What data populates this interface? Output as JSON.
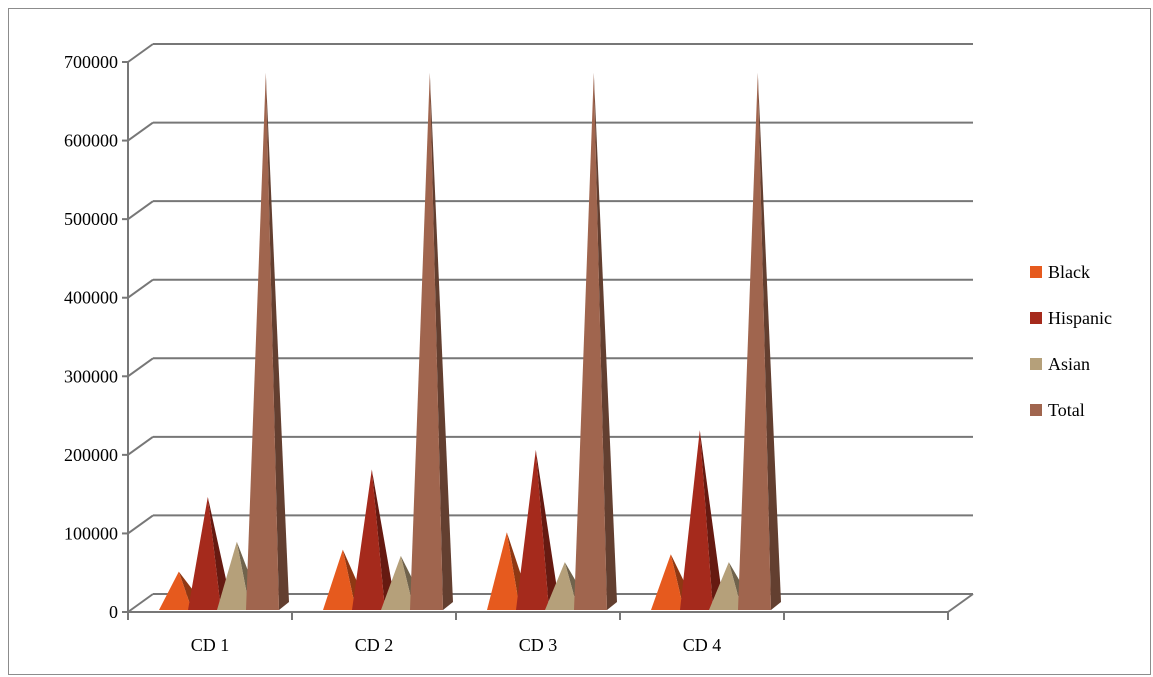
{
  "chart_data": {
    "type": "bar",
    "style": "3d-pyramid",
    "categories": [
      "CD 1",
      "CD 2",
      "CD 3",
      "CD 4"
    ],
    "series": [
      {
        "name": "Black",
        "values": [
          40000,
          68000,
          90000,
          62000
        ],
        "color": "#e65a1e"
      },
      {
        "name": "Hispanic",
        "values": [
          135000,
          170000,
          195000,
          220000
        ],
        "color": "#a52a1c"
      },
      {
        "name": "Asian",
        "values": [
          78000,
          60000,
          52000,
          52000
        ],
        "color": "#b5a07a"
      },
      {
        "name": "Total",
        "values": [
          675000,
          675000,
          675000,
          675000
        ],
        "color": "#a0654e"
      }
    ],
    "ylim": [
      0,
      700000
    ],
    "yticks": [
      "0",
      "100000",
      "200000",
      "300000",
      "400000",
      "500000",
      "600000",
      "700000"
    ],
    "grid": true,
    "legend": "right"
  }
}
